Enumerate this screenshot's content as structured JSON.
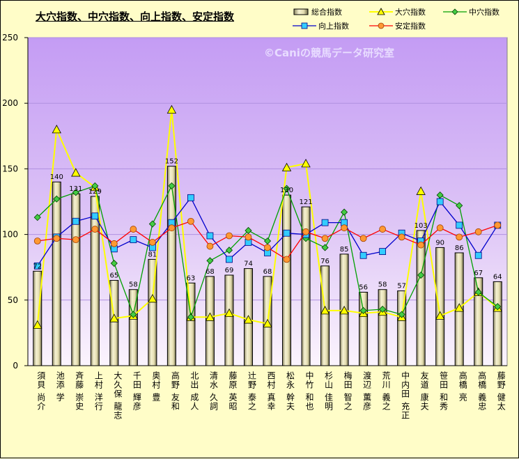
{
  "chart_data": {
    "type": "bar",
    "title": "大穴指数、中穴指数、向上指数、安定指数",
    "watermark": "©Caniの競馬データ研究室",
    "ylim": [
      0,
      250
    ],
    "yticks": [
      0,
      50,
      100,
      150,
      200,
      250
    ],
    "categories": [
      "須貝 尚介",
      "池添 学",
      "斉藤 崇史",
      "上村 洋行",
      "大久保 龍志",
      "千田 輝彦",
      "奥村 豊",
      "高野 友和",
      "北出 成人",
      "清水 久詞",
      "藤原 英昭",
      "辻野 泰之",
      "西村 真幸",
      "松永 幹夫",
      "中竹 和也",
      "杉山 佳明",
      "梅田 智之",
      "渡辺 薫彦",
      "荒川 義之",
      "中内田 充正",
      "友道 康夫",
      "笹田 和秀",
      "高橋 亮",
      "高橋 義忠",
      "藤野 健太"
    ],
    "series": [
      {
        "name": "総合指数",
        "type": "bar",
        "color": "#ece6b4",
        "values": [
          72,
          140,
          131,
          129,
          65,
          58,
          81,
          152,
          63,
          68,
          69,
          74,
          68,
          130,
          121,
          76,
          85,
          56,
          58,
          57,
          103,
          90,
          86,
          67,
          64
        ]
      },
      {
        "name": "大穴指数",
        "type": "line",
        "color": "#ffff00",
        "values": [
          31,
          180,
          147,
          136,
          36,
          38,
          51,
          195,
          37,
          37,
          40,
          35,
          32,
          151,
          154,
          42,
          42,
          40,
          41,
          37,
          133,
          38,
          44,
          56,
          44
        ]
      },
      {
        "name": "中穴指数",
        "type": "line",
        "color": "#00a000",
        "values": [
          113,
          127,
          132,
          137,
          78,
          39,
          108,
          137,
          37,
          80,
          88,
          103,
          95,
          135,
          97,
          90,
          117,
          42,
          43,
          39,
          69,
          130,
          122,
          56,
          45
        ]
      },
      {
        "name": "向上指数",
        "type": "line",
        "color": "#0000cc",
        "values": [
          76,
          98,
          110,
          114,
          89,
          96,
          90,
          109,
          128,
          99,
          81,
          94,
          86,
          101,
          100,
          109,
          109,
          84,
          87,
          101,
          95,
          125,
          107,
          84,
          107
        ]
      },
      {
        "name": "安定指数",
        "type": "line",
        "color": "#ff0000",
        "values": [
          95,
          97,
          96,
          104,
          93,
          104,
          94,
          105,
          110,
          91,
          99,
          98,
          90,
          81,
          102,
          97,
          105,
          97,
          104,
          98,
          92,
          105,
          98,
          102,
          107
        ]
      }
    ]
  }
}
